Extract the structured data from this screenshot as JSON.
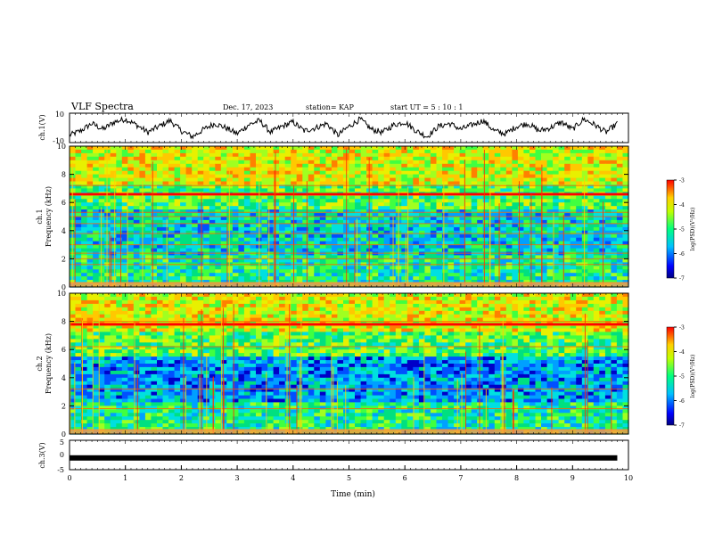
{
  "header": {
    "title": "VLF Spectra",
    "date": "Dec. 17, 2023",
    "station": "station= KAP",
    "start": "start  UT =   5 : 10 : 1"
  },
  "chart_data": [
    {
      "id": "ch1-waveform",
      "type": "line",
      "ylabel": "ch.1(V)",
      "ylim": [
        -10,
        10
      ],
      "yticks": [
        "10",
        "-10"
      ],
      "xlim": [
        0,
        10
      ],
      "color": "#000000",
      "series": [
        {
          "x": [
            0,
            0.2,
            0.4,
            0.6,
            0.8,
            1,
            1.2,
            1.4,
            1.6,
            1.8,
            2,
            2.2,
            2.4,
            2.6,
            2.8,
            3,
            3.2,
            3.4,
            3.6,
            3.8,
            4,
            4.2,
            4.4,
            4.6,
            4.8,
            5,
            5.2,
            5.4,
            5.6,
            5.8,
            6,
            6.2,
            6.4,
            6.6,
            6.8,
            7,
            7.2,
            7.4,
            7.6,
            7.8,
            8,
            8.2,
            8.4,
            8.6,
            8.8,
            9,
            9.2,
            9.4,
            9.6,
            9.8
          ],
          "values": [
            -5,
            -2,
            3,
            -1,
            4,
            6,
            2,
            -3,
            1,
            5,
            -2,
            -6,
            -1,
            3,
            0,
            -4,
            2,
            5,
            -3,
            1,
            4,
            -2,
            0,
            3,
            -5,
            1,
            6,
            -1,
            -3,
            2,
            4,
            -2,
            -6,
            1,
            3,
            -1,
            2,
            5,
            -2,
            -4,
            1,
            3,
            -2,
            0,
            4,
            -1,
            6,
            2,
            -3,
            3
          ]
        }
      ]
    },
    {
      "id": "ch1-spectrogram",
      "type": "heatmap",
      "ylabel": "ch.1",
      "ylabel2": "Frequency (kHz)",
      "ylim": [
        0,
        10
      ],
      "yticks": [
        "0",
        "2",
        "4",
        "6",
        "8",
        "10"
      ],
      "xlim": [
        0,
        10
      ],
      "colorbar": {
        "ticks": [
          "-3",
          "-4",
          "-5",
          "-6",
          "-7"
        ],
        "label": "log(PSD)(V²/Hz)",
        "range": [
          -7,
          -3
        ]
      },
      "bands_khz": [
        0.3,
        1.6,
        2.0,
        2.4,
        3.0,
        3.8,
        4.5,
        5.0,
        5.3,
        6.5,
        7.2
      ],
      "strong_line_khz": 6.6
    },
    {
      "id": "ch2-spectrogram",
      "type": "heatmap",
      "ylabel": "ch.2",
      "ylabel2": "Frequency (kHz)",
      "ylim": [
        0,
        10
      ],
      "yticks": [
        "0",
        "2",
        "4",
        "6",
        "8",
        "10"
      ],
      "xlim": [
        0,
        10
      ],
      "colorbar": {
        "ticks": [
          "-3",
          "-4",
          "-5",
          "-6",
          "-7"
        ],
        "label": "log(PSD)(V²/Hz)",
        "range": [
          -7,
          -3
        ]
      },
      "bands_khz": [
        0.3,
        1.8,
        3.2,
        6.2,
        7.7,
        8.0
      ],
      "strong_line_khz": 7.8
    },
    {
      "id": "ch3-waveform",
      "type": "line",
      "ylabel": "ch.3(V)",
      "ylim": [
        -5,
        5
      ],
      "yticks": [
        "5",
        "0",
        "-5"
      ],
      "xlim": [
        0,
        10
      ],
      "xlabel": "Time (min)",
      "xticks": [
        "0",
        "1",
        "2",
        "3",
        "4",
        "5",
        "6",
        "7",
        "8",
        "9",
        "10"
      ],
      "color": "#000000",
      "series": [
        {
          "x": [
            0,
            9.8
          ],
          "values": [
            -1,
            -1
          ]
        }
      ]
    }
  ]
}
